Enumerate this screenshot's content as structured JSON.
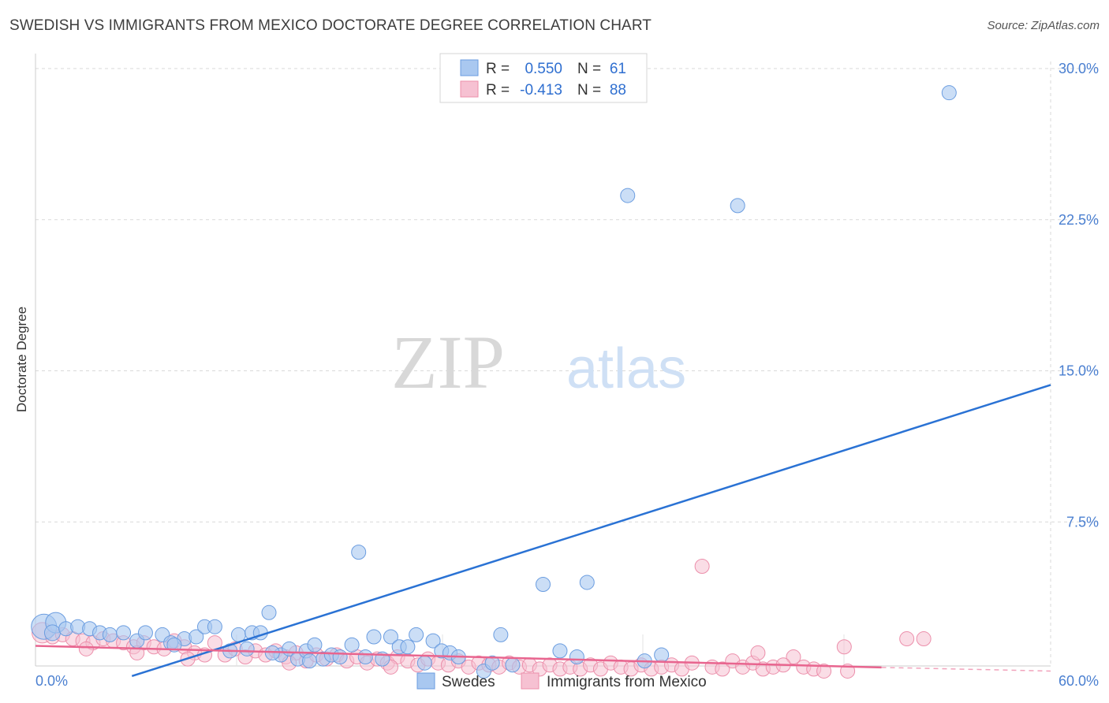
{
  "header": {
    "title": "SWEDISH VS IMMIGRANTS FROM MEXICO DOCTORATE DEGREE CORRELATION CHART",
    "source": "Source: ZipAtlas.com"
  },
  "watermark": {
    "zip": "ZIP",
    "atlas": "atlas"
  },
  "colors": {
    "blue_fill": "#a9c8f0",
    "blue_stroke": "#6b9de0",
    "blue_line": "#2a72d4",
    "pink_fill": "#f6c1d2",
    "pink_stroke": "#ec8fab",
    "pink_line": "#e8658f",
    "grid": "#d9d9d9",
    "axis_text": "#4a7fd0"
  },
  "legend": {
    "rows": [
      {
        "r_label": "R =",
        "r_value": "0.550",
        "n_label": "N =",
        "n_value": "61"
      },
      {
        "r_label": "R =",
        "r_value": "-0.413",
        "n_label": "N =",
        "n_value": "88"
      }
    ]
  },
  "bottom_legend": {
    "series1": "Swedes",
    "series2": "Immigrants from Mexico"
  },
  "chart_data": {
    "type": "scatter",
    "title": "SWEDISH VS IMMIGRANTS FROM MEXICO DOCTORATE DEGREE CORRELATION CHART",
    "xlabel": "",
    "ylabel": "Doctorate Degree",
    "xlim": [
      0,
      60
    ],
    "ylim": [
      0,
      30
    ],
    "x_tick_labels": [
      "0.0%",
      "60.0%"
    ],
    "y_ticks": [
      7.5,
      15.0,
      22.5,
      30.0
    ],
    "y_tick_labels": [
      "7.5%",
      "15.0%",
      "22.5%",
      "30.0%"
    ],
    "grid": true,
    "series": [
      {
        "name": "Swedes",
        "R": 0.55,
        "N": 61,
        "trend": {
          "x": [
            5.7,
            60
          ],
          "y": [
            -0.15,
            14.3
          ]
        },
        "points": [
          [
            0.5,
            2.3,
            16
          ],
          [
            1.2,
            2.5,
            13
          ],
          [
            1.0,
            2.0,
            10
          ],
          [
            1.8,
            2.2,
            9
          ],
          [
            2.5,
            2.3,
            9
          ],
          [
            3.2,
            2.2,
            9
          ],
          [
            3.8,
            2.0,
            9
          ],
          [
            4.4,
            1.9,
            9
          ],
          [
            5.2,
            2.0,
            9
          ],
          [
            6.0,
            1.6,
            9
          ],
          [
            6.5,
            2.0,
            9
          ],
          [
            7.5,
            1.9,
            9
          ],
          [
            8.0,
            1.5,
            9
          ],
          [
            8.8,
            1.7,
            9
          ],
          [
            9.5,
            1.8,
            9
          ],
          [
            10.0,
            2.3,
            9
          ],
          [
            10.6,
            2.3,
            9
          ],
          [
            11.5,
            1.1,
            9
          ],
          [
            12.0,
            1.9,
            9
          ],
          [
            12.5,
            1.2,
            9
          ],
          [
            12.8,
            2.0,
            9
          ],
          [
            13.3,
            2.0,
            9
          ],
          [
            13.8,
            3.0,
            9
          ],
          [
            14.5,
            0.9,
            9
          ],
          [
            15.0,
            1.2,
            9
          ],
          [
            15.5,
            0.7,
            9
          ],
          [
            16.0,
            1.1,
            9
          ],
          [
            16.5,
            1.4,
            9
          ],
          [
            17.0,
            0.7,
            9
          ],
          [
            17.5,
            0.9,
            9
          ],
          [
            18.0,
            0.8,
            9
          ],
          [
            18.7,
            1.4,
            9
          ],
          [
            19.1,
            6.0,
            9
          ],
          [
            19.5,
            0.8,
            9
          ],
          [
            20.0,
            1.8,
            9
          ],
          [
            20.5,
            0.7,
            9
          ],
          [
            21.0,
            1.8,
            9
          ],
          [
            21.5,
            1.3,
            9
          ],
          [
            22.0,
            1.3,
            9
          ],
          [
            22.5,
            1.9,
            9
          ],
          [
            23.0,
            0.5,
            9
          ],
          [
            23.5,
            1.6,
            9
          ],
          [
            24.0,
            1.1,
            9
          ],
          [
            24.5,
            1.0,
            9
          ],
          [
            25.0,
            0.8,
            9
          ],
          [
            26.5,
            0.1,
            9
          ],
          [
            27.5,
            1.9,
            9
          ],
          [
            28.2,
            0.4,
            9
          ],
          [
            30.0,
            4.4,
            9
          ],
          [
            31.0,
            1.1,
            9
          ],
          [
            32.0,
            0.8,
            9
          ],
          [
            32.6,
            4.5,
            9
          ],
          [
            35.0,
            23.7,
            9
          ],
          [
            37.0,
            0.9,
            9
          ],
          [
            41.5,
            23.2,
            9
          ],
          [
            54.0,
            28.8,
            9
          ],
          [
            8.2,
            1.4,
            9
          ],
          [
            16.2,
            0.6,
            9
          ],
          [
            14.0,
            1.0,
            9
          ],
          [
            27.0,
            0.5,
            9
          ],
          [
            36.0,
            0.6,
            9
          ]
        ]
      },
      {
        "name": "Immigrants from Mexico",
        "R": -0.413,
        "N": 88,
        "trend": {
          "x": [
            0,
            50
          ],
          "y": [
            1.35,
            0.28
          ]
        },
        "trend_dashed": {
          "x": [
            50,
            60
          ],
          "y": [
            0.28,
            0.1
          ]
        },
        "points": [
          [
            0.4,
            2.0,
            13
          ],
          [
            1.0,
            1.8,
            9
          ],
          [
            1.6,
            1.9,
            9
          ],
          [
            2.2,
            1.7,
            9
          ],
          [
            2.8,
            1.6,
            9
          ],
          [
            3.4,
            1.5,
            9
          ],
          [
            4.0,
            1.7,
            9
          ],
          [
            4.6,
            1.6,
            9
          ],
          [
            5.2,
            1.5,
            9
          ],
          [
            5.8,
            1.3,
            9
          ],
          [
            6.4,
            1.5,
            9
          ],
          [
            7.0,
            1.3,
            9
          ],
          [
            7.6,
            1.2,
            9
          ],
          [
            8.2,
            1.6,
            9
          ],
          [
            8.8,
            1.3,
            9
          ],
          [
            9.4,
            1.0,
            9
          ],
          [
            10.0,
            0.9,
            9
          ],
          [
            10.6,
            1.5,
            9
          ],
          [
            11.2,
            0.9,
            9
          ],
          [
            11.8,
            1.2,
            9
          ],
          [
            12.4,
            0.8,
            9
          ],
          [
            13.0,
            1.1,
            9
          ],
          [
            13.6,
            0.9,
            9
          ],
          [
            14.2,
            1.1,
            9
          ],
          [
            14.8,
            0.8,
            9
          ],
          [
            15.4,
            1.0,
            9
          ],
          [
            16.0,
            0.6,
            9
          ],
          [
            16.6,
            0.9,
            9
          ],
          [
            17.2,
            0.7,
            9
          ],
          [
            17.8,
            0.9,
            9
          ],
          [
            18.4,
            0.6,
            9
          ],
          [
            19.0,
            0.8,
            9
          ],
          [
            19.6,
            0.5,
            9
          ],
          [
            20.2,
            0.7,
            9
          ],
          [
            20.8,
            0.5,
            9
          ],
          [
            21.4,
            0.8,
            9
          ],
          [
            22.0,
            0.6,
            9
          ],
          [
            22.6,
            0.4,
            9
          ],
          [
            23.2,
            0.7,
            9
          ],
          [
            23.8,
            0.5,
            9
          ],
          [
            24.4,
            0.4,
            9
          ],
          [
            25.0,
            0.6,
            9
          ],
          [
            25.6,
            0.3,
            9
          ],
          [
            26.2,
            0.5,
            9
          ],
          [
            26.8,
            0.4,
            9
          ],
          [
            27.4,
            0.3,
            9
          ],
          [
            28.0,
            0.5,
            9
          ],
          [
            28.6,
            0.3,
            9
          ],
          [
            29.2,
            0.4,
            9
          ],
          [
            29.8,
            0.2,
            9
          ],
          [
            30.4,
            0.4,
            9
          ],
          [
            31.0,
            0.2,
            9
          ],
          [
            31.6,
            0.3,
            9
          ],
          [
            32.2,
            0.2,
            9
          ],
          [
            32.8,
            0.4,
            9
          ],
          [
            33.4,
            0.2,
            9
          ],
          [
            34.0,
            0.5,
            9
          ],
          [
            34.6,
            0.3,
            9
          ],
          [
            35.2,
            0.2,
            9
          ],
          [
            35.8,
            0.4,
            9
          ],
          [
            36.4,
            0.2,
            9
          ],
          [
            37.0,
            0.3,
            9
          ],
          [
            37.6,
            0.4,
            9
          ],
          [
            38.2,
            0.2,
            9
          ],
          [
            38.8,
            0.5,
            9
          ],
          [
            39.4,
            5.3,
            9
          ],
          [
            40.0,
            0.3,
            9
          ],
          [
            40.6,
            0.2,
            9
          ],
          [
            41.2,
            0.6,
            9
          ],
          [
            41.8,
            0.3,
            9
          ],
          [
            42.4,
            0.5,
            9
          ],
          [
            43.0,
            0.2,
            9
          ],
          [
            43.6,
            0.3,
            9
          ],
          [
            42.7,
            1.0,
            9
          ],
          [
            44.8,
            0.8,
            9
          ],
          [
            44.2,
            0.4,
            9
          ],
          [
            45.4,
            0.3,
            9
          ],
          [
            46.0,
            0.2,
            9
          ],
          [
            46.6,
            0.1,
            9
          ],
          [
            47.8,
            1.3,
            9
          ],
          [
            51.5,
            1.7,
            9
          ],
          [
            52.5,
            1.7,
            9
          ],
          [
            48.0,
            0.1,
            9
          ],
          [
            3.0,
            1.2,
            9
          ],
          [
            6.0,
            1.0,
            9
          ],
          [
            9.0,
            0.7,
            9
          ],
          [
            15.0,
            0.5,
            9
          ],
          [
            21.0,
            0.3,
            9
          ]
        ]
      }
    ]
  }
}
